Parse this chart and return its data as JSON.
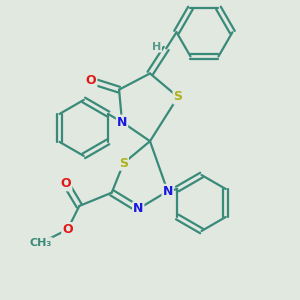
{
  "bg_color": "#e0e8e0",
  "atom_colors": {
    "C": "#3a8a7a",
    "N": "#1818e0",
    "O": "#e01818",
    "S": "#b0b018",
    "H": "#5a9a8a"
  },
  "bond_color": "#3a8a7a",
  "bond_lw": 1.6,
  "font_size_atom": 9,
  "fig_size": [
    3.0,
    3.0
  ],
  "dpi": 100
}
